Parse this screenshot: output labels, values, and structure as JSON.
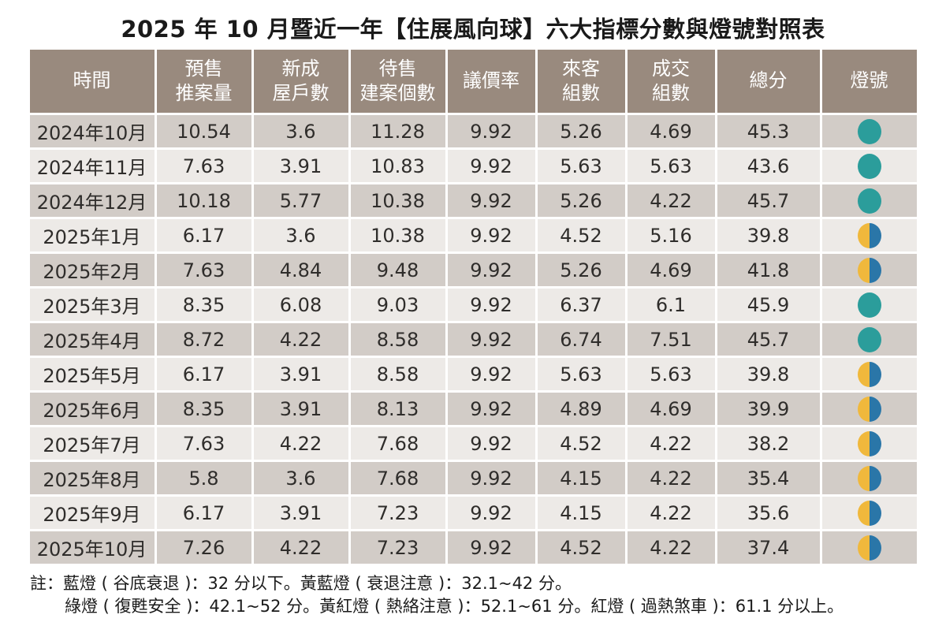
{
  "title": "2025 年 10 月暨近一年【住展風向球】六大指標分數與燈號對照表",
  "colors": {
    "header_bg": "#998a7e",
    "row_dark": "#d2ccc7",
    "row_light": "#edeae7",
    "green_light": "#2b9d9b",
    "yellow_light": "#f0b83c",
    "blue_light": "#2a76a8"
  },
  "chart_data": {
    "type": "table",
    "columns": [
      [
        "時間"
      ],
      [
        "預售",
        "推案量"
      ],
      [
        "新成",
        "屋戶數"
      ],
      [
        "待售",
        "建案個數"
      ],
      [
        "議價率"
      ],
      [
        "來客",
        "組數"
      ],
      [
        "成交",
        "組數"
      ],
      [
        "總分"
      ],
      [
        "燈號"
      ]
    ],
    "rows": [
      {
        "time": "2024年10月",
        "values": [
          "10.54",
          "3.6",
          "11.28",
          "9.92",
          "5.26",
          "4.69",
          "45.3"
        ],
        "light": "green"
      },
      {
        "time": "2024年11月",
        "values": [
          "7.63",
          "3.91",
          "10.83",
          "9.92",
          "5.63",
          "5.63",
          "43.6"
        ],
        "light": "green"
      },
      {
        "time": "2024年12月",
        "values": [
          "10.18",
          "5.77",
          "10.38",
          "9.92",
          "5.26",
          "4.22",
          "45.7"
        ],
        "light": "green"
      },
      {
        "time": "2025年1月",
        "values": [
          "6.17",
          "3.6",
          "10.38",
          "9.92",
          "4.52",
          "5.16",
          "39.8"
        ],
        "light": "yellow-blue"
      },
      {
        "time": "2025年2月",
        "values": [
          "7.63",
          "4.84",
          "9.48",
          "9.92",
          "5.26",
          "4.69",
          "41.8"
        ],
        "light": "yellow-blue"
      },
      {
        "time": "2025年3月",
        "values": [
          "8.35",
          "6.08",
          "9.03",
          "9.92",
          "6.37",
          "6.1",
          "45.9"
        ],
        "light": "green"
      },
      {
        "time": "2025年4月",
        "values": [
          "8.72",
          "4.22",
          "8.58",
          "9.92",
          "6.74",
          "7.51",
          "45.7"
        ],
        "light": "green"
      },
      {
        "time": "2025年5月",
        "values": [
          "6.17",
          "3.91",
          "8.58",
          "9.92",
          "5.63",
          "5.63",
          "39.8"
        ],
        "light": "yellow-blue"
      },
      {
        "time": "2025年6月",
        "values": [
          "8.35",
          "3.91",
          "8.13",
          "9.92",
          "4.89",
          "4.69",
          "39.9"
        ],
        "light": "yellow-blue"
      },
      {
        "time": "2025年7月",
        "values": [
          "7.63",
          "4.22",
          "7.68",
          "9.92",
          "4.52",
          "4.22",
          "38.2"
        ],
        "light": "yellow-blue"
      },
      {
        "time": "2025年8月",
        "values": [
          "5.8",
          "3.6",
          "7.68",
          "9.92",
          "4.15",
          "4.22",
          "35.4"
        ],
        "light": "yellow-blue"
      },
      {
        "time": "2025年9月",
        "values": [
          "6.17",
          "3.91",
          "7.23",
          "9.92",
          "4.15",
          "4.22",
          "35.6"
        ],
        "light": "yellow-blue"
      },
      {
        "time": "2025年10月",
        "values": [
          "7.26",
          "4.22",
          "7.23",
          "9.92",
          "4.52",
          "4.22",
          "37.4"
        ],
        "light": "yellow-blue"
      }
    ]
  },
  "notes": {
    "line1": "註：藍燈 ( 谷底衰退 )：32 分以下。黃藍燈 ( 衰退注意 )：32.1~42 分。",
    "line2": "綠燈 ( 復甦安全 )：42.1~52 分。黃紅燈 ( 熱絡注意 )：52.1~61 分。紅燈 ( 過熱煞車 )：61.1 分以上。"
  }
}
